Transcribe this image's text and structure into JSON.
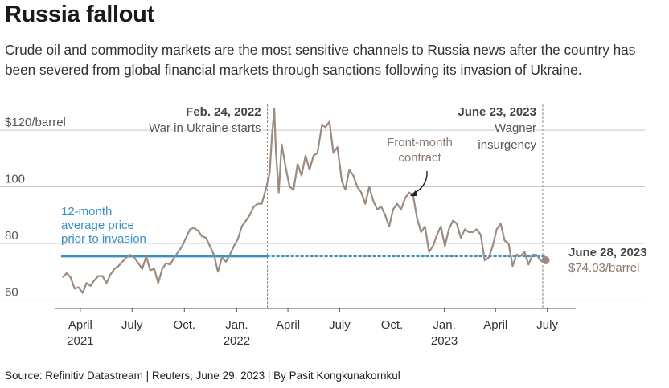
{
  "title": "Russia fallout",
  "subtitle": "Crude oil and commodity markets are the most sensitive channels to Russia news after the country has been severed from global financial markets through sanctions following its invasion of Ukraine.",
  "source": "Source: Refinitiv Datastream | Reuters, June 29, 2023 | By Pasit Kongkunakornkul",
  "colors": {
    "line": "#9b8b80",
    "average": "#3a8fc6",
    "grid": "#c8c8c8",
    "axis": "#555555",
    "event": "#888888"
  },
  "chart_data": {
    "type": "line",
    "title": "Russia fallout",
    "ylabel": "$/barrel",
    "ylim": [
      57,
      124
    ],
    "xlim": [
      "2021-02-15",
      "2023-08-20"
    ],
    "y_ticks": [
      {
        "value": 120,
        "label": "$120/barrel"
      },
      {
        "value": 100,
        "label": "100"
      },
      {
        "value": 80,
        "label": "80"
      },
      {
        "value": 60,
        "label": "60"
      }
    ],
    "x_ticks": [
      {
        "date": "2021-04-01",
        "label": "April",
        "year": "2021"
      },
      {
        "date": "2021-07-01",
        "label": "July"
      },
      {
        "date": "2021-10-01",
        "label": "Oct."
      },
      {
        "date": "2022-01-01",
        "label": "Jan.",
        "year": "2022"
      },
      {
        "date": "2022-04-01",
        "label": "April"
      },
      {
        "date": "2022-07-01",
        "label": "July"
      },
      {
        "date": "2022-10-01",
        "label": "Oct."
      },
      {
        "date": "2023-01-01",
        "label": "Jan.",
        "year": "2023"
      },
      {
        "date": "2023-04-01",
        "label": "April"
      },
      {
        "date": "2023-07-01",
        "label": "July"
      }
    ],
    "series": [
      {
        "name": "Front-month contract",
        "points": [
          [
            "2021-03-01",
            68
          ],
          [
            "2021-03-08",
            69.5
          ],
          [
            "2021-03-15",
            68
          ],
          [
            "2021-03-22",
            64
          ],
          [
            "2021-03-29",
            64.5
          ],
          [
            "2021-04-05",
            62.5
          ],
          [
            "2021-04-12",
            66
          ],
          [
            "2021-04-19",
            65
          ],
          [
            "2021-04-26",
            67
          ],
          [
            "2021-05-03",
            68.5
          ],
          [
            "2021-05-10",
            68.5
          ],
          [
            "2021-05-17",
            66
          ],
          [
            "2021-05-24",
            69
          ],
          [
            "2021-05-31",
            71
          ],
          [
            "2021-06-07",
            72
          ],
          [
            "2021-06-14",
            73.5
          ],
          [
            "2021-06-21",
            75
          ],
          [
            "2021-06-28",
            76
          ],
          [
            "2021-07-05",
            75
          ],
          [
            "2021-07-12",
            73
          ],
          [
            "2021-07-19",
            71
          ],
          [
            "2021-07-26",
            75.5
          ],
          [
            "2021-08-02",
            70.5
          ],
          [
            "2021-08-09",
            71
          ],
          [
            "2021-08-16",
            66
          ],
          [
            "2021-08-23",
            71
          ],
          [
            "2021-08-30",
            73
          ],
          [
            "2021-09-06",
            72.5
          ],
          [
            "2021-09-13",
            75
          ],
          [
            "2021-09-20",
            77
          ],
          [
            "2021-09-27",
            79
          ],
          [
            "2021-10-04",
            82
          ],
          [
            "2021-10-11",
            85
          ],
          [
            "2021-10-18",
            85.5
          ],
          [
            "2021-10-25",
            84.5
          ],
          [
            "2021-11-01",
            82.5
          ],
          [
            "2021-11-08",
            82
          ],
          [
            "2021-11-15",
            79
          ],
          [
            "2021-11-22",
            76
          ],
          [
            "2021-11-29",
            70
          ],
          [
            "2021-12-06",
            75
          ],
          [
            "2021-12-13",
            73.5
          ],
          [
            "2021-12-20",
            76
          ],
          [
            "2021-12-27",
            79
          ],
          [
            "2022-01-03",
            81.5
          ],
          [
            "2022-01-10",
            86
          ],
          [
            "2022-01-17",
            88
          ],
          [
            "2022-01-24",
            90
          ],
          [
            "2022-01-31",
            93
          ],
          [
            "2022-02-07",
            94
          ],
          [
            "2022-02-14",
            94
          ],
          [
            "2022-02-21",
            99
          ],
          [
            "2022-02-28",
            105
          ],
          [
            "2022-03-04",
            118
          ],
          [
            "2022-03-08",
            127.5
          ],
          [
            "2022-03-11",
            112
          ],
          [
            "2022-03-16",
            98
          ],
          [
            "2022-03-21",
            115
          ],
          [
            "2022-03-28",
            107
          ],
          [
            "2022-04-04",
            100
          ],
          [
            "2022-04-11",
            99
          ],
          [
            "2022-04-18",
            108
          ],
          [
            "2022-04-25",
            104
          ],
          [
            "2022-05-02",
            111
          ],
          [
            "2022-05-09",
            106
          ],
          [
            "2022-05-16",
            111
          ],
          [
            "2022-05-23",
            112
          ],
          [
            "2022-05-31",
            122
          ],
          [
            "2022-06-06",
            121
          ],
          [
            "2022-06-13",
            123
          ],
          [
            "2022-06-20",
            112
          ],
          [
            "2022-06-27",
            114
          ],
          [
            "2022-07-05",
            102
          ],
          [
            "2022-07-11",
            99
          ],
          [
            "2022-07-18",
            106
          ],
          [
            "2022-07-25",
            104
          ],
          [
            "2022-08-01",
            100
          ],
          [
            "2022-08-08",
            98
          ],
          [
            "2022-08-15",
            94
          ],
          [
            "2022-08-22",
            100
          ],
          [
            "2022-08-29",
            95
          ],
          [
            "2022-09-05",
            92
          ],
          [
            "2022-09-12",
            93
          ],
          [
            "2022-09-19",
            90
          ],
          [
            "2022-09-26",
            86
          ],
          [
            "2022-10-03",
            92
          ],
          [
            "2022-10-10",
            94
          ],
          [
            "2022-10-17",
            92
          ],
          [
            "2022-10-24",
            96
          ],
          [
            "2022-10-31",
            98
          ],
          [
            "2022-11-07",
            97
          ],
          [
            "2022-11-14",
            89
          ],
          [
            "2022-11-21",
            84
          ],
          [
            "2022-11-28",
            86
          ],
          [
            "2022-12-05",
            77
          ],
          [
            "2022-12-12",
            79
          ],
          [
            "2022-12-19",
            83
          ],
          [
            "2022-12-26",
            86
          ],
          [
            "2023-01-02",
            79
          ],
          [
            "2023-01-09",
            85
          ],
          [
            "2023-01-16",
            88
          ],
          [
            "2023-01-23",
            87
          ],
          [
            "2023-01-30",
            82
          ],
          [
            "2023-02-06",
            85
          ],
          [
            "2023-02-13",
            84
          ],
          [
            "2023-02-20",
            84
          ],
          [
            "2023-02-27",
            85
          ],
          [
            "2023-03-06",
            83
          ],
          [
            "2023-03-13",
            74
          ],
          [
            "2023-03-20",
            75
          ],
          [
            "2023-03-27",
            79
          ],
          [
            "2023-04-03",
            85
          ],
          [
            "2023-04-10",
            87
          ],
          [
            "2023-04-17",
            81
          ],
          [
            "2023-04-24",
            80
          ],
          [
            "2023-05-01",
            72
          ],
          [
            "2023-05-08",
            76
          ],
          [
            "2023-05-15",
            75.5
          ],
          [
            "2023-05-22",
            77
          ],
          [
            "2023-05-29",
            72.5
          ],
          [
            "2023-06-05",
            76
          ],
          [
            "2023-06-12",
            76
          ],
          [
            "2023-06-19",
            74
          ],
          [
            "2023-06-23",
            73.5
          ],
          [
            "2023-06-28",
            74.03
          ]
        ]
      },
      {
        "name": "12-month average price prior to invasion",
        "value": 75.5,
        "solid_until": "2022-02-24",
        "dotted_until": "2023-06-28"
      }
    ],
    "events": [
      {
        "date": "2022-02-24",
        "date_label": "Feb. 24, 2022",
        "text_line1": "War in Ukraine starts",
        "text_line2": ""
      },
      {
        "date": "2023-06-23",
        "date_label": "June 23, 2023",
        "text_line1": "Wagner",
        "text_line2": "insurgency"
      }
    ],
    "annotations": {
      "average_label": [
        "12-month",
        "average price",
        "prior to invasion"
      ],
      "contract_label": [
        "Front-month",
        "contract"
      ],
      "end_date_label": "June 28, 2023",
      "end_value_label": "$74.03/barrel"
    }
  }
}
